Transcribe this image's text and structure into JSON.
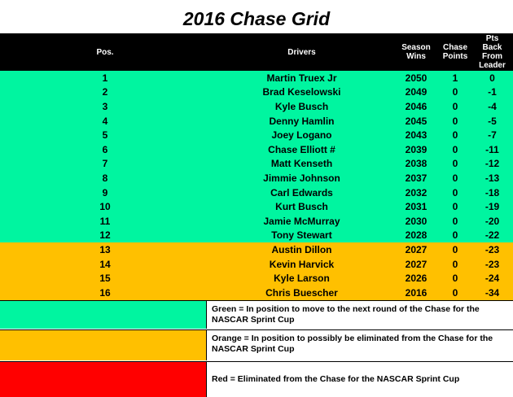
{
  "title": "2016 Chase Grid",
  "colors": {
    "green": "#00f5a0",
    "orange": "#ffc000",
    "red": "#ff0000",
    "header": "#000000"
  },
  "header": {
    "pos": "Pos.",
    "drivers": "Drivers",
    "season_wins": [
      "Season",
      "Wins"
    ],
    "chase_points": [
      "Chase",
      "Points"
    ],
    "pts_back": [
      "Pts",
      "Back",
      "From",
      "Leader"
    ]
  },
  "rows": [
    {
      "pos": "1",
      "driver": "Martin Truex Jr",
      "wins": "2050",
      "points": "1",
      "back": "0",
      "status": "green"
    },
    {
      "pos": "2",
      "driver": "Brad Keselowski",
      "wins": "2049",
      "points": "0",
      "back": "-1",
      "status": "green"
    },
    {
      "pos": "3",
      "driver": "Kyle Busch",
      "wins": "2046",
      "points": "0",
      "back": "-4",
      "status": "green"
    },
    {
      "pos": "4",
      "driver": "Denny Hamlin",
      "wins": "2045",
      "points": "0",
      "back": "-5",
      "status": "green"
    },
    {
      "pos": "5",
      "driver": "Joey Logano",
      "wins": "2043",
      "points": "0",
      "back": "-7",
      "status": "green"
    },
    {
      "pos": "6",
      "driver": "Chase Elliott #",
      "wins": "2039",
      "points": "0",
      "back": "-11",
      "status": "green"
    },
    {
      "pos": "7",
      "driver": "Matt Kenseth",
      "wins": "2038",
      "points": "0",
      "back": "-12",
      "status": "green"
    },
    {
      "pos": "8",
      "driver": "Jimmie Johnson",
      "wins": "2037",
      "points": "0",
      "back": "-13",
      "status": "green"
    },
    {
      "pos": "9",
      "driver": "Carl Edwards",
      "wins": "2032",
      "points": "0",
      "back": "-18",
      "status": "green"
    },
    {
      "pos": "10",
      "driver": "Kurt Busch",
      "wins": "2031",
      "points": "0",
      "back": "-19",
      "status": "green"
    },
    {
      "pos": "11",
      "driver": "Jamie McMurray",
      "wins": "2030",
      "points": "0",
      "back": "-20",
      "status": "green"
    },
    {
      "pos": "12",
      "driver": "Tony Stewart",
      "wins": "2028",
      "points": "0",
      "back": "-22",
      "status": "green"
    },
    {
      "pos": "13",
      "driver": "Austin Dillon",
      "wins": "2027",
      "points": "0",
      "back": "-23",
      "status": "orange"
    },
    {
      "pos": "14",
      "driver": "Kevin Harvick",
      "wins": "2027",
      "points": "0",
      "back": "-23",
      "status": "orange"
    },
    {
      "pos": "15",
      "driver": "Kyle Larson",
      "wins": "2026",
      "points": "0",
      "back": "-24",
      "status": "orange"
    },
    {
      "pos": "16",
      "driver": "Chris Buescher",
      "wins": "2016",
      "points": "0",
      "back": "-34",
      "status": "orange"
    }
  ],
  "legend": {
    "green": "Green = In position to move to the next round of the Chase for the NASCAR Sprint Cup",
    "orange": "Orange = In position to possibly be eliminated from the Chase for the NASCAR Sprint Cup",
    "red": "Red = Eliminated from the Chase for the NASCAR Sprint Cup"
  }
}
